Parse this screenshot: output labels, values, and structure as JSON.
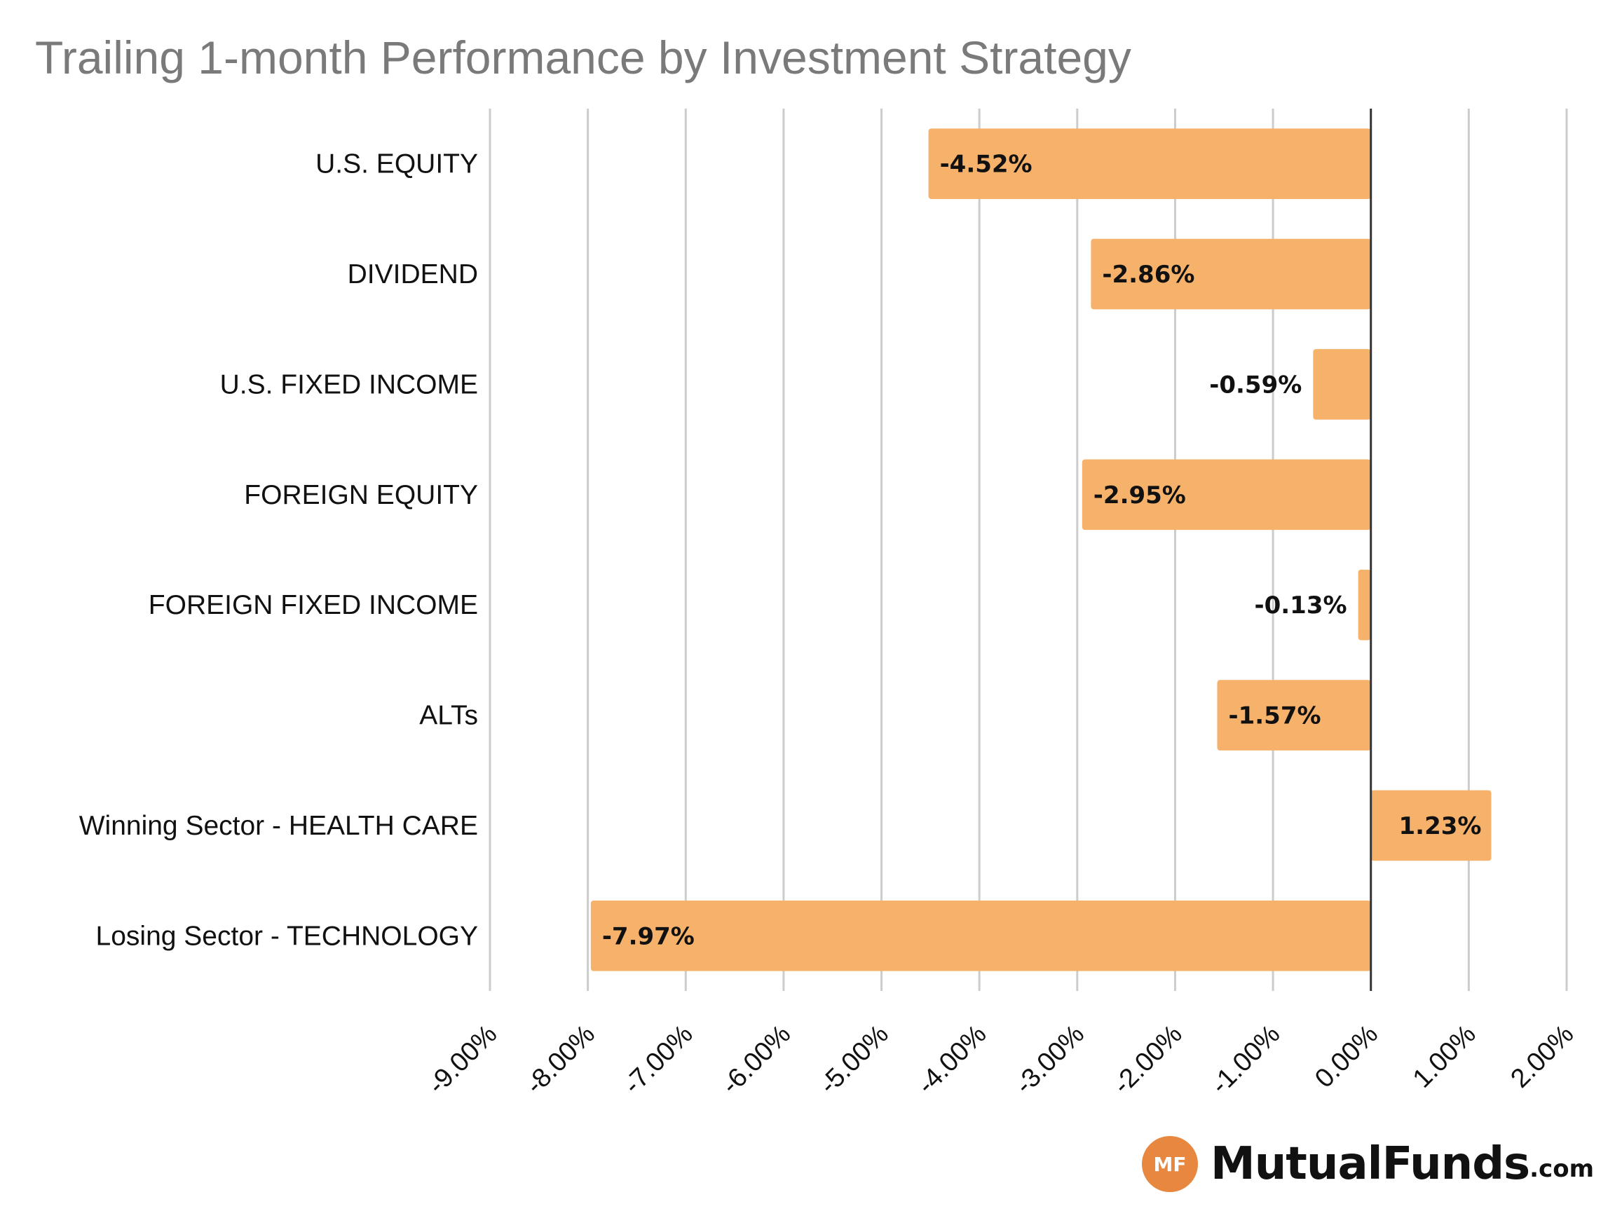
{
  "chart_data": {
    "type": "bar",
    "orientation": "horizontal",
    "title": "Trailing 1-month Performance by Investment Strategy",
    "categories": [
      "U.S. EQUITY",
      "DIVIDEND",
      "U.S. FIXED INCOME",
      "FOREIGN EQUITY",
      "FOREIGN FIXED INCOME",
      "ALTs",
      "Winning Sector - HEALTH CARE",
      "Losing Sector - TECHNOLOGY"
    ],
    "values": [
      -4.52,
      -2.86,
      -0.59,
      -2.95,
      -0.13,
      -1.57,
      1.23,
      -7.97
    ],
    "value_labels": [
      "-4.52%",
      "-2.86%",
      "-0.59%",
      "-2.95%",
      "-0.13%",
      "-1.57%",
      "1.23%",
      "-7.97%"
    ],
    "xlim": [
      -9,
      2
    ],
    "xticks": [
      -9,
      -8,
      -7,
      -6,
      -5,
      -4,
      -3,
      -2,
      -1,
      0,
      1,
      2
    ],
    "xtick_labels": [
      "-9.00%",
      "-8.00%",
      "-7.00%",
      "-6.00%",
      "-5.00%",
      "-4.00%",
      "-3.00%",
      "-2.00%",
      "-1.00%",
      "0.00%",
      "1.00%",
      "2.00%"
    ],
    "grid": true,
    "bar_color": "#f6b26b",
    "grid_color": "#cccccc",
    "zero_line_color": "#333333"
  },
  "logo": {
    "badge": "MF",
    "name": "MutualFunds",
    "tld": ".com",
    "badge_color": "#e8873f"
  }
}
